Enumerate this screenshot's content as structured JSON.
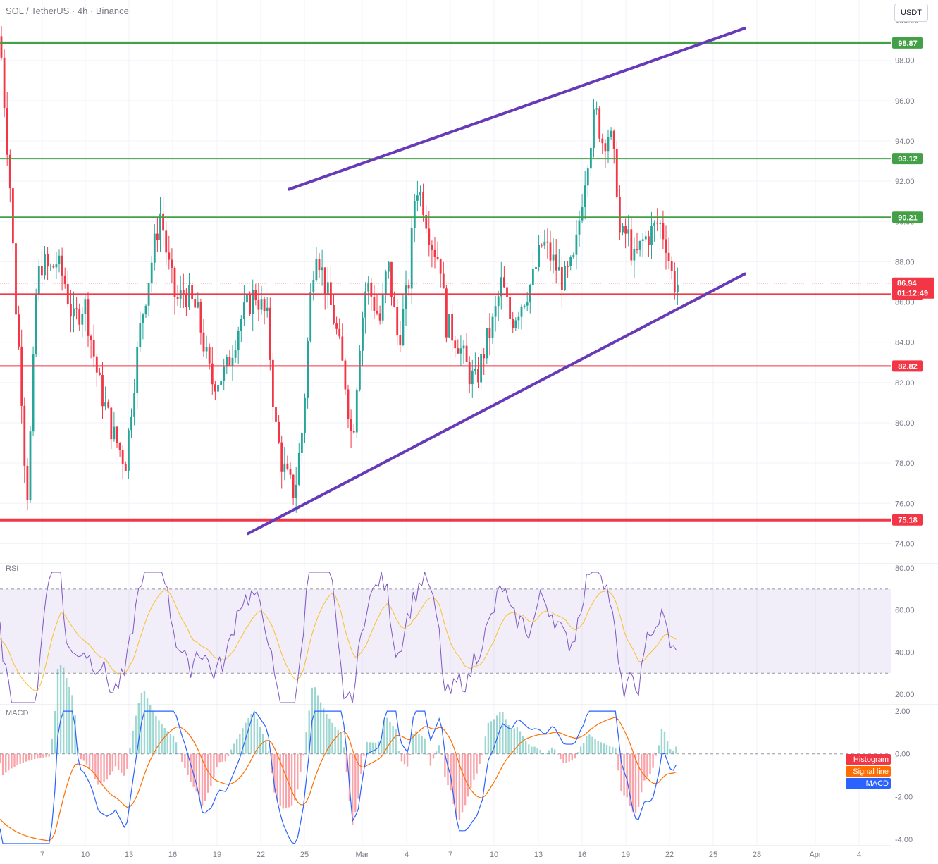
{
  "header": {
    "symbol": "SOL / TetherUS · 4h · Binance",
    "currency_button": "USDT"
  },
  "chart_data": {
    "type": "candlestick",
    "price_axis": {
      "ylim": [
        73.0,
        101.0
      ],
      "ticks": [
        "100.00",
        "98.00",
        "96.00",
        "94.00",
        "92.00",
        "90.00",
        "88.00",
        "86.00",
        "84.00",
        "82.00",
        "80.00",
        "78.00",
        "76.00",
        "74.00"
      ]
    },
    "x_axis": {
      "tick_labels": [
        "7",
        "10",
        "13",
        "16",
        "19",
        "22",
        "25",
        "Mar",
        "4",
        "7",
        "10",
        "13",
        "16",
        "19",
        "22",
        "25",
        "28",
        "Apr",
        "4"
      ]
    },
    "horizontal_levels": [
      {
        "value": "98.87",
        "color": "#43a047",
        "style": "thick"
      },
      {
        "value": "93.12",
        "color": "#43a047",
        "style": "thin"
      },
      {
        "value": "90.21",
        "color": "#43a047",
        "style": "thin"
      },
      {
        "value": "86.39",
        "color": "#f23645",
        "style": "thin"
      },
      {
        "value": "82.82",
        "color": "#f23645",
        "style": "thin"
      },
      {
        "value": "75.18",
        "color": "#f23645",
        "style": "thick"
      }
    ],
    "current_price": {
      "value": "86.94",
      "countdown": "01:12:49",
      "color": "#f23645"
    },
    "trendlines": [
      {
        "name": "channel-upper",
        "color": "#673ab7",
        "points": [
          [
            0.0,
            91.6
          ],
          [
            1.0,
            99.6
          ]
        ]
      },
      {
        "name": "channel-lower",
        "color": "#673ab7",
        "points": [
          [
            0.0,
            74.5
          ],
          [
            1.0,
            87.4
          ]
        ]
      }
    ],
    "rsi": {
      "title": "RSI",
      "ylim": [
        15,
        82
      ],
      "ticks": [
        "80.00",
        "60.00",
        "40.00",
        "20.00"
      ],
      "bands": [
        70,
        50,
        30
      ]
    },
    "macd": {
      "title": "MACD",
      "ylim": [
        -4.3,
        2.3
      ],
      "ticks": [
        "2.00",
        "0.00",
        "-2.00",
        "-4.00"
      ],
      "legend": [
        "Histogram",
        "Signal line",
        "MACD"
      ]
    }
  },
  "colors": {
    "up": "#26a69a",
    "down": "#f23645",
    "rsi_line": "#7e57c2",
    "rsi_ma": "#fbc02d",
    "macd_line": "#2962ff",
    "signal_line": "#ff6d00",
    "hist_legend": "#f23645",
    "signal_legend": "#ff6d00",
    "macd_legend": "#2962ff"
  }
}
